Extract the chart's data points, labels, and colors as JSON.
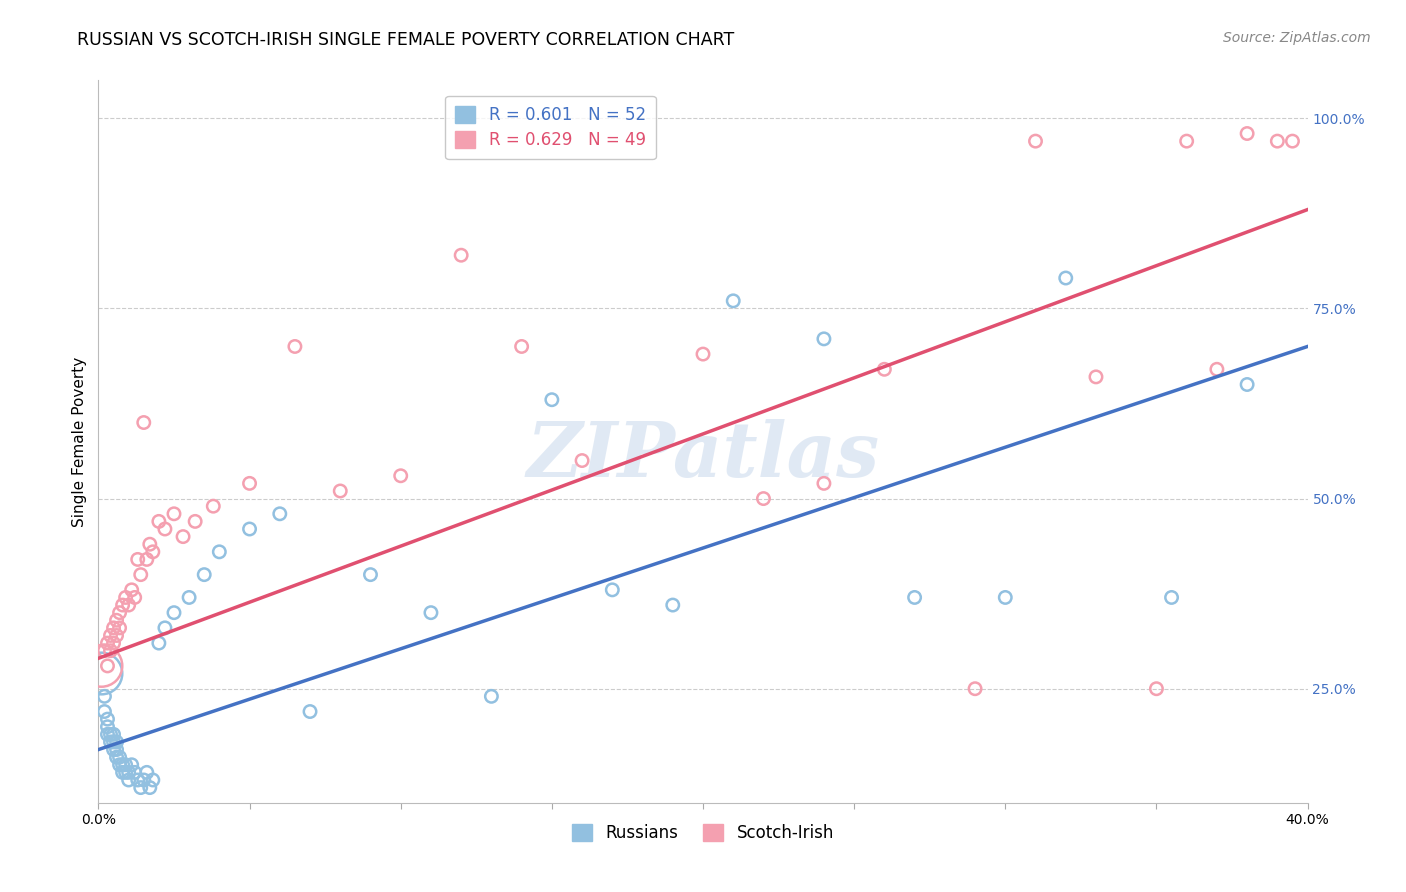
{
  "title": "RUSSIAN VS SCOTCH-IRISH SINGLE FEMALE POVERTY CORRELATION CHART",
  "source": "Source: ZipAtlas.com",
  "ylabel": "Single Female Poverty",
  "xlim": [
    0.0,
    0.4
  ],
  "ylim": [
    0.1,
    1.05
  ],
  "xticks": [
    0.0,
    0.05,
    0.1,
    0.15,
    0.2,
    0.25,
    0.3,
    0.35,
    0.4
  ],
  "yticks": [
    0.25,
    0.5,
    0.75,
    1.0
  ],
  "yticklabels_right": [
    "25.0%",
    "50.0%",
    "75.0%",
    "100.0%"
  ],
  "watermark": "ZIPatlas",
  "legend_russian": "R = 0.601   N = 52",
  "legend_scotch": "R = 0.629   N = 49",
  "blue_color": "#92C0E0",
  "pink_color": "#F4A0B0",
  "blue_line_color": "#4472C4",
  "pink_line_color": "#E05070",
  "russians_x": [
    0.001,
    0.002,
    0.002,
    0.003,
    0.003,
    0.003,
    0.004,
    0.004,
    0.005,
    0.005,
    0.005,
    0.006,
    0.006,
    0.006,
    0.007,
    0.007,
    0.008,
    0.008,
    0.009,
    0.009,
    0.01,
    0.01,
    0.011,
    0.012,
    0.013,
    0.014,
    0.015,
    0.016,
    0.017,
    0.018,
    0.02,
    0.022,
    0.025,
    0.03,
    0.035,
    0.04,
    0.05,
    0.06,
    0.07,
    0.09,
    0.11,
    0.13,
    0.15,
    0.17,
    0.19,
    0.21,
    0.24,
    0.27,
    0.3,
    0.32,
    0.355,
    0.38
  ],
  "russians_y": [
    0.27,
    0.24,
    0.22,
    0.21,
    0.2,
    0.19,
    0.19,
    0.18,
    0.19,
    0.18,
    0.17,
    0.18,
    0.17,
    0.16,
    0.16,
    0.15,
    0.15,
    0.14,
    0.15,
    0.14,
    0.13,
    0.14,
    0.15,
    0.14,
    0.13,
    0.12,
    0.13,
    0.14,
    0.12,
    0.13,
    0.31,
    0.33,
    0.35,
    0.37,
    0.4,
    0.43,
    0.46,
    0.48,
    0.22,
    0.4,
    0.35,
    0.24,
    0.63,
    0.38,
    0.36,
    0.76,
    0.71,
    0.37,
    0.37,
    0.79,
    0.37,
    0.65
  ],
  "russians_size": [
    900,
    80,
    80,
    80,
    80,
    80,
    80,
    80,
    80,
    80,
    80,
    80,
    80,
    80,
    80,
    80,
    80,
    80,
    80,
    80,
    80,
    80,
    80,
    80,
    80,
    80,
    80,
    80,
    80,
    80,
    80,
    80,
    80,
    80,
    80,
    80,
    80,
    80,
    80,
    80,
    80,
    80,
    80,
    80,
    80,
    80,
    80,
    80,
    80,
    80,
    80,
    80
  ],
  "scotch_x": [
    0.001,
    0.002,
    0.003,
    0.003,
    0.004,
    0.004,
    0.005,
    0.005,
    0.006,
    0.006,
    0.007,
    0.007,
    0.008,
    0.009,
    0.01,
    0.011,
    0.012,
    0.013,
    0.014,
    0.015,
    0.016,
    0.017,
    0.018,
    0.02,
    0.022,
    0.025,
    0.028,
    0.032,
    0.038,
    0.05,
    0.065,
    0.08,
    0.1,
    0.12,
    0.14,
    0.16,
    0.2,
    0.22,
    0.24,
    0.26,
    0.29,
    0.31,
    0.33,
    0.35,
    0.36,
    0.37,
    0.38,
    0.39,
    0.395
  ],
  "scotch_y": [
    0.28,
    0.3,
    0.28,
    0.31,
    0.3,
    0.32,
    0.31,
    0.33,
    0.32,
    0.34,
    0.33,
    0.35,
    0.36,
    0.37,
    0.36,
    0.38,
    0.37,
    0.42,
    0.4,
    0.6,
    0.42,
    0.44,
    0.43,
    0.47,
    0.46,
    0.48,
    0.45,
    0.47,
    0.49,
    0.52,
    0.7,
    0.51,
    0.53,
    0.82,
    0.7,
    0.55,
    0.69,
    0.5,
    0.52,
    0.67,
    0.25,
    0.97,
    0.66,
    0.25,
    0.97,
    0.67,
    0.98,
    0.97,
    0.97
  ],
  "scotch_size": [
    900,
    80,
    80,
    80,
    80,
    80,
    80,
    80,
    80,
    80,
    80,
    80,
    80,
    80,
    80,
    80,
    80,
    80,
    80,
    80,
    80,
    80,
    80,
    80,
    80,
    80,
    80,
    80,
    80,
    80,
    80,
    80,
    80,
    80,
    80,
    80,
    80,
    80,
    80,
    80,
    80,
    80,
    80,
    80,
    80,
    80,
    80,
    80,
    80
  ],
  "blue_line": {
    "x0": 0.0,
    "y0": 0.17,
    "x1": 0.4,
    "y1": 0.7
  },
  "pink_line": {
    "x0": 0.0,
    "y0": 0.29,
    "x1": 0.4,
    "y1": 0.88
  },
  "grid_color": "#CCCCCC",
  "background_color": "#FFFFFF",
  "title_fontsize": 12.5,
  "label_fontsize": 11,
  "tick_fontsize": 10,
  "source_fontsize": 10
}
